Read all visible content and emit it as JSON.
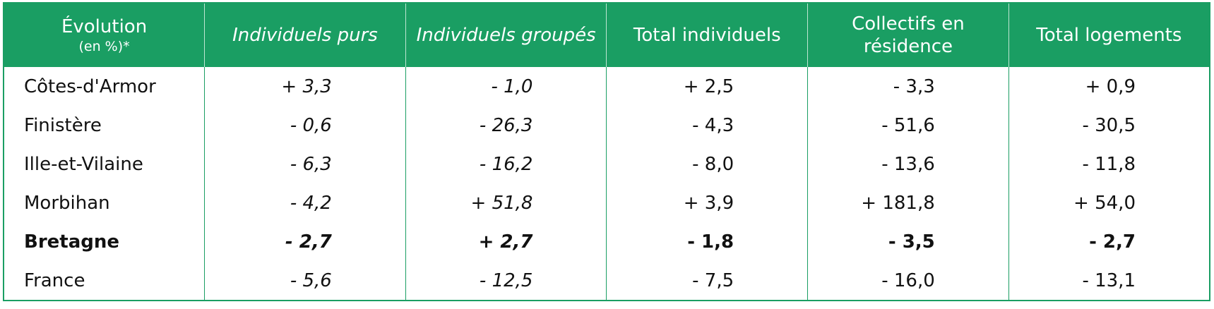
{
  "table": {
    "header": [
      {
        "label": "Évolution",
        "note": "(en %)*"
      },
      "Individuels purs",
      "Individuels groupés",
      "Total individuels",
      "Collectifs en résidence",
      "Total logements"
    ],
    "rows": [
      [
        "Côtes-d'Armor",
        "+ 3,3",
        "- 1,0",
        "+ 2,5",
        "- 3,3",
        "+ 0,9"
      ],
      [
        "Finistère",
        "- 0,6",
        "- 26,3",
        "- 4,3",
        "- 51,6",
        "- 30,5"
      ],
      [
        "Ille-et-Vilaine",
        "- 6,3",
        "- 16,2",
        "- 8,0",
        "- 13,6",
        "- 11,8"
      ],
      [
        "Morbihan",
        "- 4,2",
        "+ 51,8",
        "+ 3,9",
        "+ 181,8",
        "+ 54,0"
      ],
      [
        "Bretagne",
        "- 2,7",
        "+ 2,7",
        "- 1,8",
        "- 3,5",
        "- 2,7"
      ],
      [
        "France",
        "- 5,6",
        "- 12,5",
        "- 7,5",
        "- 16,0",
        "- 13,1"
      ]
    ],
    "bold_row": 4
  }
}
